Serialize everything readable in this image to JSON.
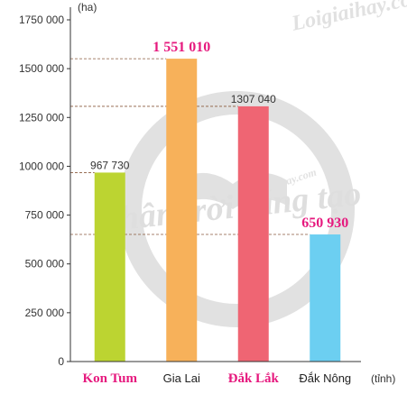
{
  "chart_data": {
    "type": "bar",
    "categories": [
      "Kon Tum",
      "Gia Lai",
      "Đắk Lắk",
      "Đắk Nông"
    ],
    "values": [
      967730,
      1551010,
      1307040,
      650930
    ],
    "value_labels": [
      "967 730",
      "1 551 010",
      "1307 040",
      "650 930"
    ],
    "highlight_value_labels": [
      false,
      true,
      false,
      true
    ],
    "highlight_category_labels": [
      true,
      false,
      true,
      false
    ],
    "colors": [
      "#bcd431",
      "#f7b15a",
      "#ef6573",
      "#6ccff1"
    ],
    "highlight_color": "#e6197e",
    "ylim": [
      0,
      1750000
    ],
    "yticks": [
      0,
      250000,
      500000,
      750000,
      1000000,
      1250000,
      1500000,
      1750000
    ],
    "ytick_labels": [
      "0",
      "250 000",
      "500 000",
      "750 000",
      "1000 000",
      "1250 000",
      "1500 000",
      "1750 000"
    ],
    "y_unit": "(ha)",
    "x_unit": "(tỉnh)",
    "dashed_reference_lines": true
  },
  "watermark": {
    "main": "Chân trời sáng tạo",
    "site": "Loigiaihay.com",
    "site_small": "Loigiaihay.com"
  }
}
